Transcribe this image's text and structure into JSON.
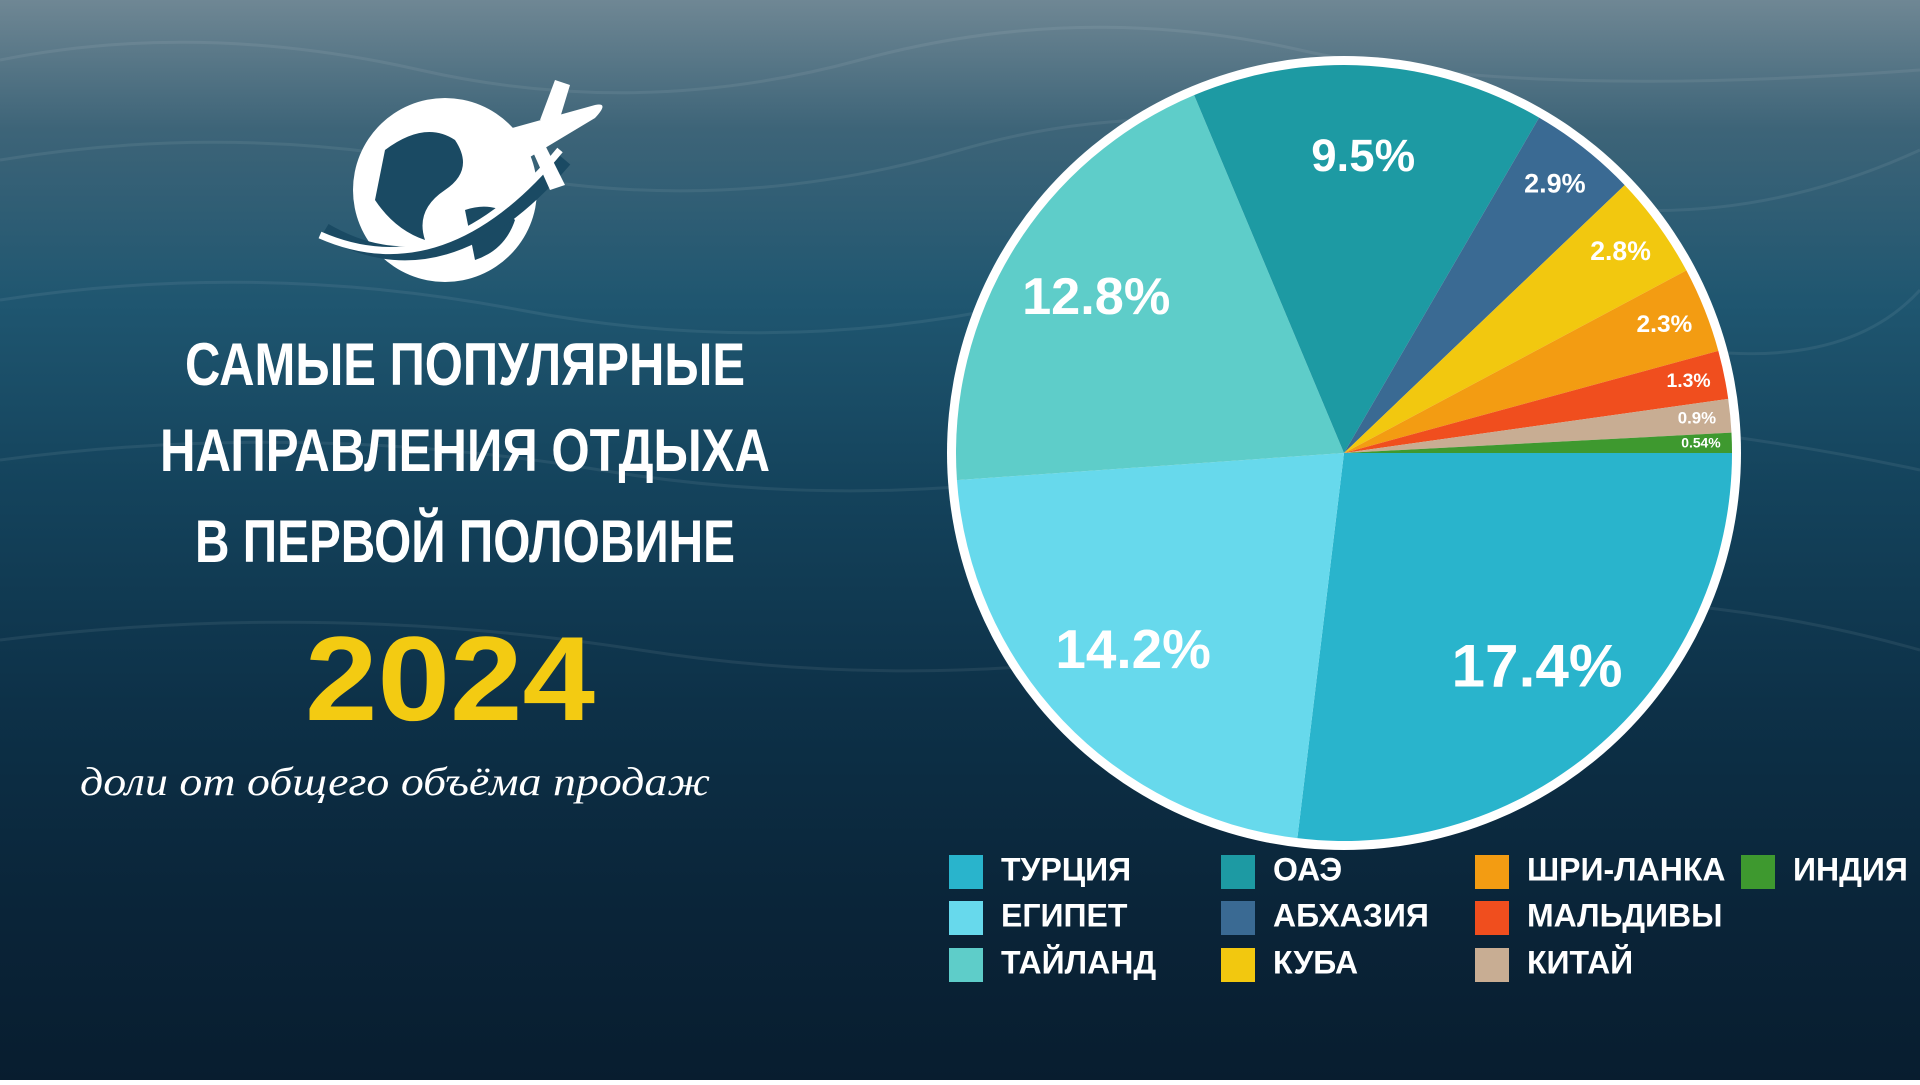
{
  "chart_data": {
    "type": "pie",
    "title_lines": [
      "САМЫЕ ПОПУЛЯРНЫЕ",
      "НАПРАВЛЕНИЯ ОТДЫХА",
      "В ПЕРВОЙ ПОЛОВИНЕ"
    ],
    "year": "2024",
    "subtitle": "доли от общего объёма продаж",
    "categories": [
      "ТУРЦИЯ",
      "ЕГИПЕТ",
      "ТАЙЛАНД",
      "ОАЭ",
      "АБХАЗИЯ",
      "КУБА",
      "ШРИ-ЛАНКА",
      "МАЛЬДИВЫ",
      "КИТАЙ",
      "ИНДИЯ"
    ],
    "values": [
      17.4,
      14.2,
      12.8,
      9.5,
      2.9,
      2.8,
      2.3,
      1.3,
      0.9,
      0.54
    ],
    "value_labels": [
      "17.4%",
      "14.2%",
      "12.8%",
      "9.5%",
      "2.9%",
      "2.8%",
      "2.3%",
      "1.3%",
      "0.9%",
      "0.54%"
    ],
    "colors": [
      "#29b4cc",
      "#67d9ec",
      "#5ecdc9",
      "#1d9aa3",
      "#3a6a93",
      "#f2c80f",
      "#f39c12",
      "#f04e1e",
      "#c8ad93",
      "#3e992f"
    ]
  }
}
